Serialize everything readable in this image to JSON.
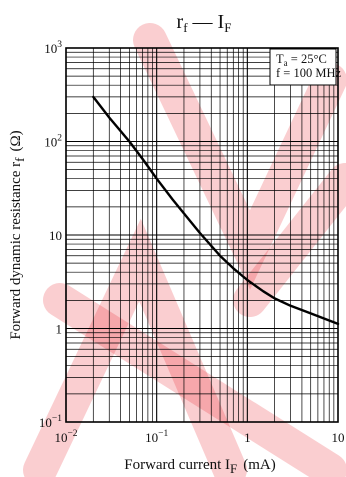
{
  "chart_data": {
    "type": "line",
    "title": {
      "main": "r",
      "main_sub": "f",
      "sep": " — ",
      "var": "I",
      "var_sub": "F"
    },
    "xlabel": {
      "text": "Forward current  I",
      "sub": "F",
      "unit": "(mA)"
    },
    "ylabel": {
      "text": "Forward dynamic resistance  r",
      "sub": "f",
      "unit": "(Ω)"
    },
    "x_scale": "log",
    "y_scale": "log",
    "xlim": [
      0.01,
      10
    ],
    "ylim": [
      0.1,
      1000
    ],
    "x_ticks": [
      {
        "value": 0.01,
        "base": "10",
        "exp": "−2"
      },
      {
        "value": 0.1,
        "base": "10",
        "exp": "−1"
      },
      {
        "value": 1,
        "base": "1",
        "exp": ""
      },
      {
        "value": 10,
        "base": "10",
        "exp": ""
      }
    ],
    "y_ticks": [
      {
        "value": 1000,
        "base": "10",
        "exp": "3"
      },
      {
        "value": 100,
        "base": "10",
        "exp": "2"
      },
      {
        "value": 10,
        "base": "10",
        "exp": ""
      },
      {
        "value": 1,
        "base": "1",
        "exp": ""
      },
      {
        "value": 0.1,
        "base": "10",
        "exp": "−1"
      }
    ],
    "grid": true,
    "conditions": [
      {
        "name": "T",
        "sub": "a",
        "value": " = 25°C"
      },
      {
        "name": "f",
        "sub": "",
        "value": " = 100 MHz"
      }
    ],
    "conditions_placement": "top-right",
    "series": [
      {
        "color": "#000000",
        "x": [
          0.02,
          0.03,
          0.05,
          0.07,
          0.1,
          0.15,
          0.2,
          0.3,
          0.5,
          0.7,
          1,
          1.5,
          2,
          3,
          5,
          7,
          10
        ],
        "y": [
          300,
          180,
          100,
          65,
          40,
          24,
          17,
          10.5,
          6.0,
          4.4,
          3.3,
          2.5,
          2.1,
          1.75,
          1.45,
          1.28,
          1.12
        ]
      }
    ]
  },
  "watermark_color": "#e8202a"
}
